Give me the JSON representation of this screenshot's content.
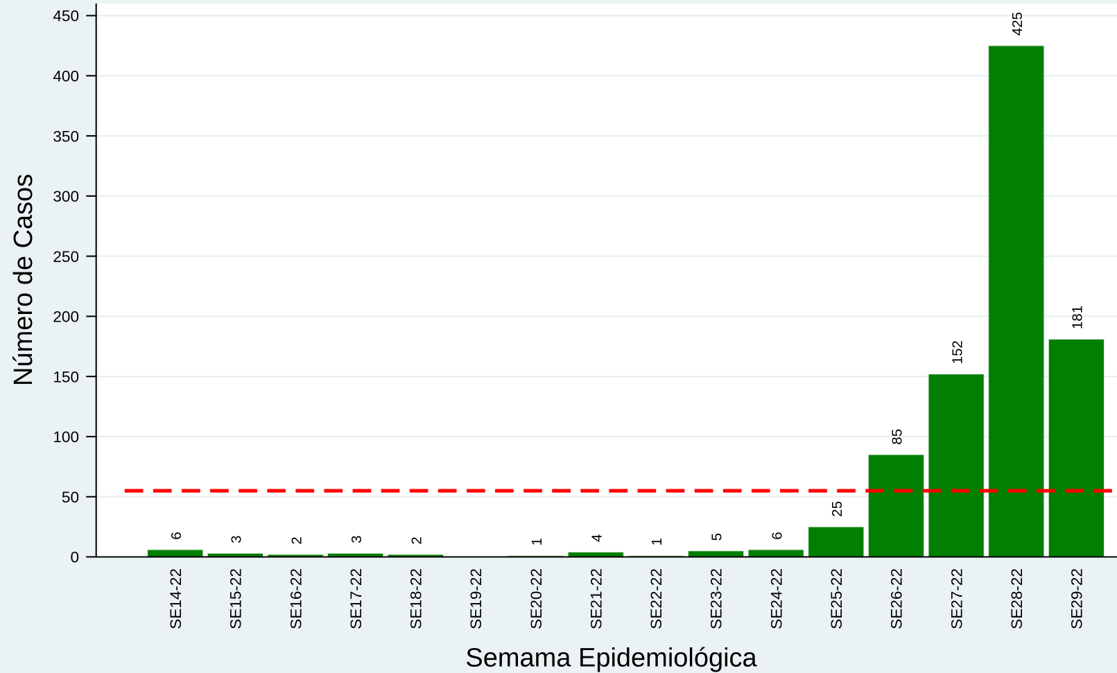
{
  "chart_data": {
    "type": "bar",
    "x_label": "Semama Epidemiológica",
    "y_label": "Número de Casos",
    "categories": [
      "SE14-22",
      "SE15-22",
      "SE16-22",
      "SE17-22",
      "SE18-22",
      "SE19-22",
      "SE20-22",
      "SE21-22",
      "SE22-22",
      "SE23-22",
      "SE24-22",
      "SE25-22",
      "SE26-22",
      "SE27-22",
      "SE28-22",
      "SE29-22"
    ],
    "values": [
      6,
      3,
      2,
      3,
      2,
      null,
      1,
      4,
      1,
      5,
      6,
      25,
      85,
      152,
      425,
      181
    ],
    "color": "#007f00",
    "ylim": [
      0,
      460
    ],
    "yticks": [
      0,
      50,
      100,
      150,
      200,
      250,
      300,
      350,
      400,
      450
    ],
    "grid": true,
    "threshold": {
      "value": 55,
      "color": "#ff0000"
    }
  }
}
